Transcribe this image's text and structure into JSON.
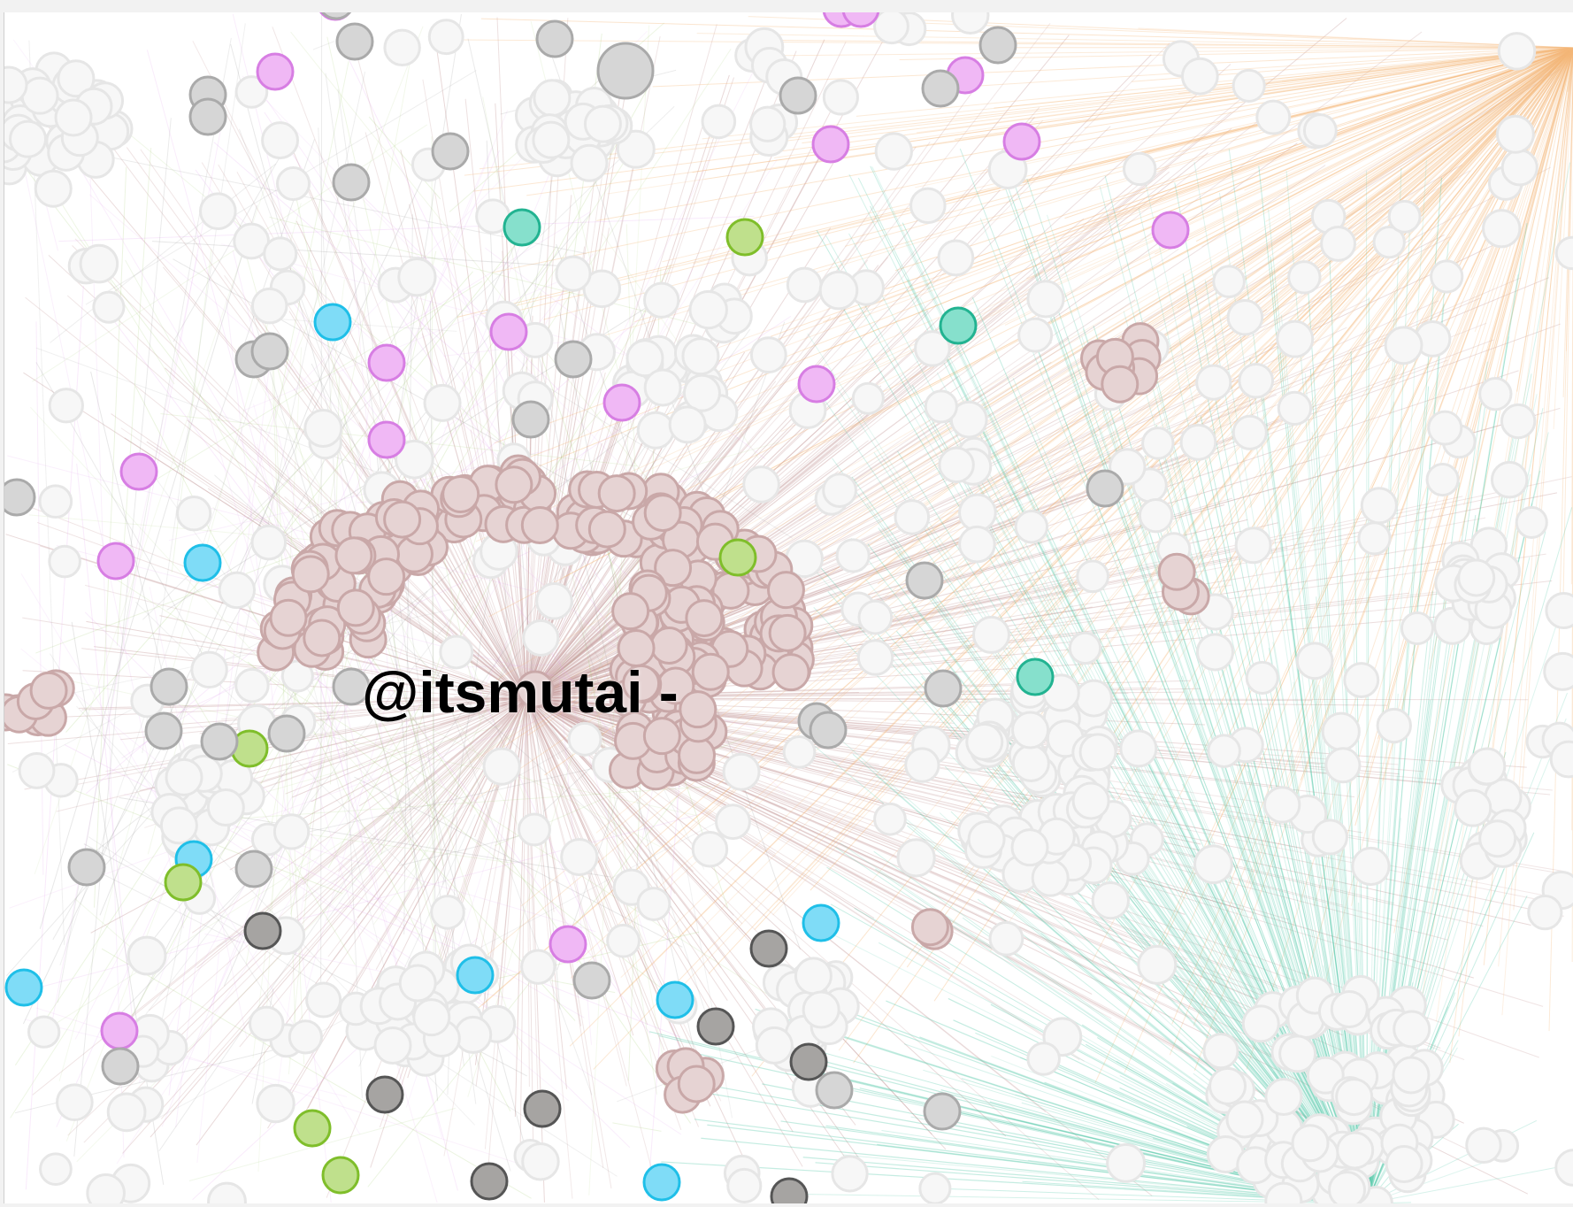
{
  "graph": {
    "focus_label": "@itsmutai -",
    "focus_node_id": "itsmutai",
    "palette": {
      "brown": "#e6d3d3",
      "brown_stroke": "#c9a8a8",
      "pink": "#f0b8f5",
      "pink_stroke": "#d77ee3",
      "cyan": "#7fdcf7",
      "cyan_stroke": "#1fbfe8",
      "teal": "#86e0cc",
      "teal_stroke": "#22b391",
      "green": "#bfe08c",
      "green_stroke": "#7fbe2a",
      "gray": "#d6d6d6",
      "gray_stroke": "#aaaaaa",
      "dark": "#a6a4a2",
      "dark_stroke": "#555555",
      "faded": "#f7f7f7",
      "faded_stroke": "#e6e6e6",
      "edge_brown": "#c9a1a1",
      "edge_orange": "#f5b87a",
      "edge_teal": "#55c9aa",
      "edge_green": "#a9cf7a",
      "edge_pink": "#e3a6ee",
      "edge_gray": "#9a9a9a"
    }
  }
}
